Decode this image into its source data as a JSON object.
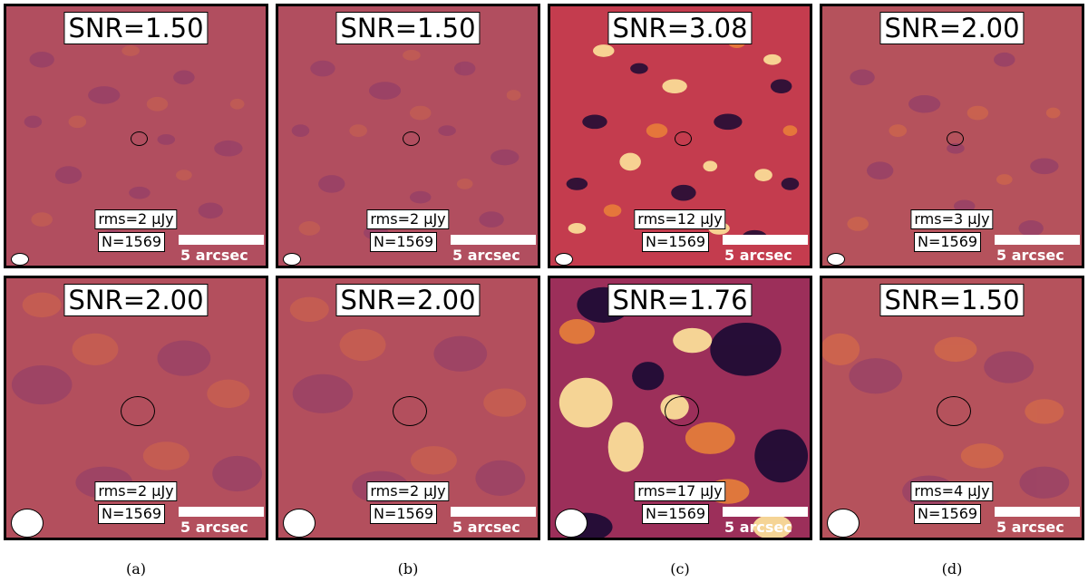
{
  "panels": [
    {
      "snr": "SNR=1.50",
      "rms": "rms=2 μJy",
      "n": "N=1569",
      "scale": "5 arcsec",
      "style": "fine-muted"
    },
    {
      "snr": "SNR=1.50",
      "rms": "rms=2 μJy",
      "n": "N=1569",
      "scale": "5 arcsec",
      "style": "fine-muted"
    },
    {
      "snr": "SNR=3.08",
      "rms": "rms=12 μJy",
      "n": "N=1569",
      "scale": "5 arcsec",
      "style": "fine-vivid"
    },
    {
      "snr": "SNR=2.00",
      "rms": "rms=3 μJy",
      "n": "N=1569",
      "scale": "5 arcsec",
      "style": "fine-muted"
    },
    {
      "snr": "SNR=2.00",
      "rms": "rms=2 μJy",
      "n": "N=1569",
      "scale": "5 arcsec",
      "style": "coarse-muted"
    },
    {
      "snr": "SNR=2.00",
      "rms": "rms=2 μJy",
      "n": "N=1569",
      "scale": "5 arcsec",
      "style": "coarse-muted"
    },
    {
      "snr": "SNR=1.76",
      "rms": "rms=17 μJy",
      "n": "N=1569",
      "scale": "5 arcsec",
      "style": "coarse-vivid"
    },
    {
      "snr": "SNR=1.50",
      "rms": "rms=4 μJy",
      "n": "N=1569",
      "scale": "5 arcsec",
      "style": "coarse-muted"
    }
  ],
  "captions": [
    "(a)",
    "(b)",
    "(c)",
    "(d)"
  ],
  "colors": {
    "muted_base": "#b14e5f",
    "muted_dark": "#8a3a6b",
    "muted_light": "#d06a4a",
    "vivid_dark": "#1a0a33",
    "vivid_mid": "#c43c4e",
    "vivid_light": "#fde39a"
  }
}
